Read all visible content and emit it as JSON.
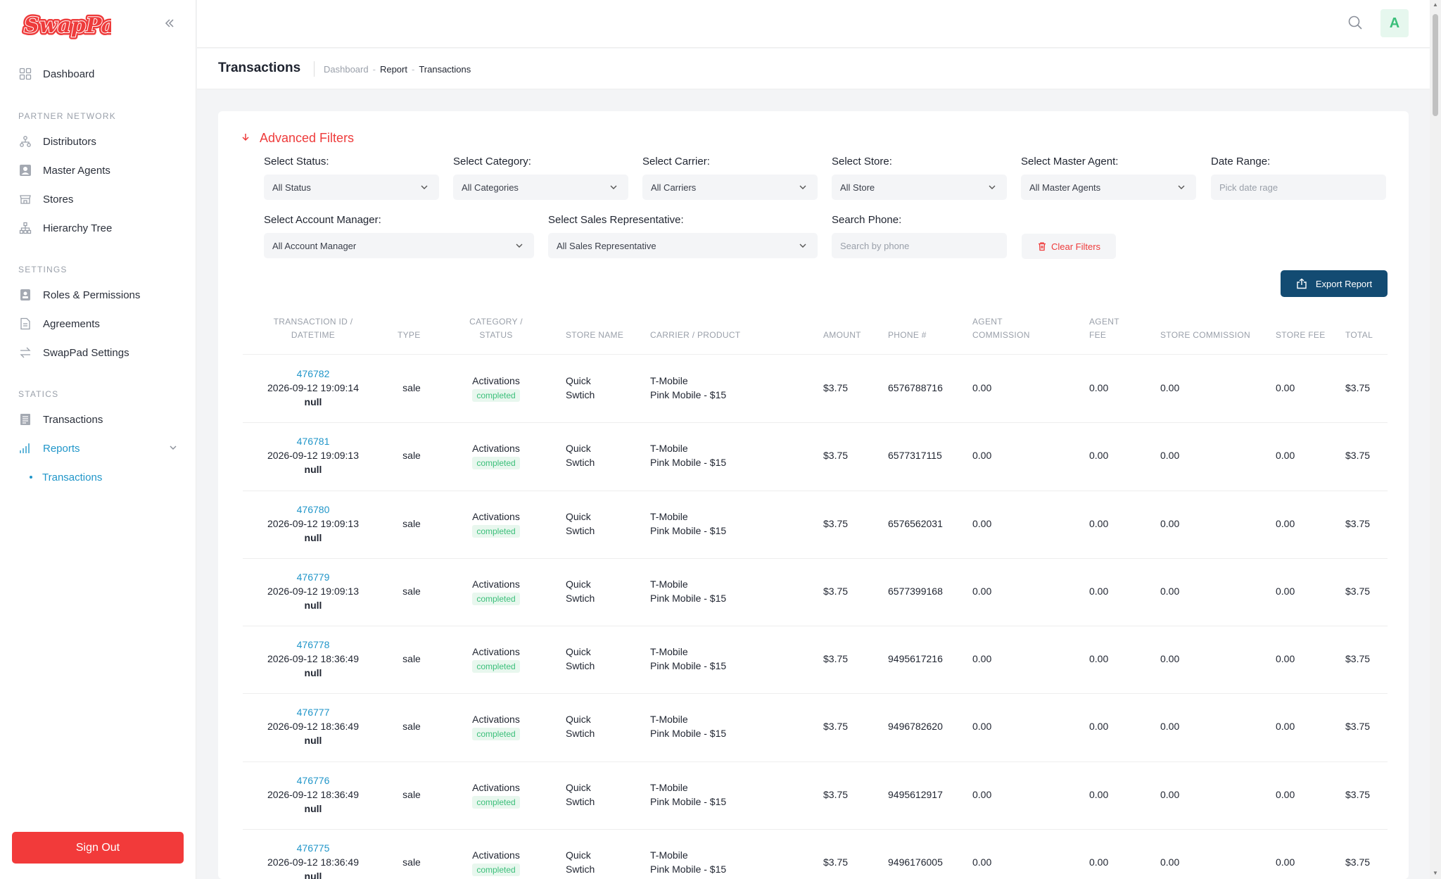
{
  "brand": {
    "logo_text": "SwapPad",
    "logo_color": "#ee3b3b"
  },
  "sidebar": {
    "dashboard": "Dashboard",
    "section_partner": "PARTNER NETWORK",
    "distributors": "Distributors",
    "master_agents": "Master Agents",
    "stores": "Stores",
    "hierarchy_tree": "Hierarchy Tree",
    "section_settings": "SETTINGS",
    "roles": "Roles & Permissions",
    "agreements": "Agreements",
    "swappad_settings": "SwapPad Settings",
    "section_statics": "STATICS",
    "transactions": "Transactions",
    "reports": "Reports",
    "reports_sub_transactions": "Transactions",
    "sign_out": "Sign Out"
  },
  "topbar": {
    "avatar_letter": "A",
    "search_icon": "search-icon"
  },
  "page": {
    "title": "Transactions",
    "breadcrumb": [
      "Dashboard",
      "Report",
      "Transactions"
    ]
  },
  "filters": {
    "title": "Advanced Filters",
    "status": {
      "label": "Select Status:",
      "value": "All Status"
    },
    "category": {
      "label": "Select Category:",
      "value": "All Categories"
    },
    "carrier": {
      "label": "Select Carrier:",
      "value": "All Carriers"
    },
    "store": {
      "label": "Select Store:",
      "value": "All Store"
    },
    "master_agent": {
      "label": "Select Master Agent:",
      "value": "All Master Agents"
    },
    "date_range": {
      "label": "Date Range:",
      "placeholder": "Pick date rage"
    },
    "account_manager": {
      "label": "Select Account Manager:",
      "value": "All Account Manager"
    },
    "sales_rep": {
      "label": "Select Sales Representative:",
      "value": "All Sales Representative"
    },
    "phone": {
      "label": "Search Phone:",
      "placeholder": "Search by phone"
    },
    "clear": "Clear Filters",
    "export": "Export Report"
  },
  "table": {
    "headers": {
      "tid_1": "TRANSACTION ID /",
      "tid_2": "DATETIME",
      "type": "TYPE",
      "cat_1": "CATEGORY /",
      "cat_2": "STATUS",
      "store": "STORE NAME",
      "carrier": "CARRIER / PRODUCT",
      "amount": "AMOUNT",
      "phone": "PHONE #",
      "agent_comm_1": "AGENT",
      "agent_comm_2": "COMMISSION",
      "agent_fee_1": "AGENT",
      "agent_fee_2": "FEE",
      "store_comm": "STORE COMMISSION",
      "store_fee": "STORE FEE",
      "total": "TOTAL"
    },
    "rows": [
      {
        "id": "476782",
        "datetime": "2026-09-12 19:09:14",
        "extra": "null",
        "type": "sale",
        "category": "Activations",
        "status": "completed",
        "store_1": "Quick",
        "store_2": "Swtich",
        "carrier": "T-Mobile",
        "product": "Pink Mobile - $15",
        "amount": "$3.75",
        "phone": "6576788716",
        "agent_commission": "0.00",
        "agent_fee": "0.00",
        "store_commission": "0.00",
        "store_fee": "0.00",
        "total": "$3.75"
      },
      {
        "id": "476781",
        "datetime": "2026-09-12 19:09:13",
        "extra": "null",
        "type": "sale",
        "category": "Activations",
        "status": "completed",
        "store_1": "Quick",
        "store_2": "Swtich",
        "carrier": "T-Mobile",
        "product": "Pink Mobile - $15",
        "amount": "$3.75",
        "phone": "6577317115",
        "agent_commission": "0.00",
        "agent_fee": "0.00",
        "store_commission": "0.00",
        "store_fee": "0.00",
        "total": "$3.75"
      },
      {
        "id": "476780",
        "datetime": "2026-09-12 19:09:13",
        "extra": "null",
        "type": "sale",
        "category": "Activations",
        "status": "completed",
        "store_1": "Quick",
        "store_2": "Swtich",
        "carrier": "T-Mobile",
        "product": "Pink Mobile - $15",
        "amount": "$3.75",
        "phone": "6576562031",
        "agent_commission": "0.00",
        "agent_fee": "0.00",
        "store_commission": "0.00",
        "store_fee": "0.00",
        "total": "$3.75"
      },
      {
        "id": "476779",
        "datetime": "2026-09-12 19:09:13",
        "extra": "null",
        "type": "sale",
        "category": "Activations",
        "status": "completed",
        "store_1": "Quick",
        "store_2": "Swtich",
        "carrier": "T-Mobile",
        "product": "Pink Mobile - $15",
        "amount": "$3.75",
        "phone": "6577399168",
        "agent_commission": "0.00",
        "agent_fee": "0.00",
        "store_commission": "0.00",
        "store_fee": "0.00",
        "total": "$3.75"
      },
      {
        "id": "476778",
        "datetime": "2026-09-12 18:36:49",
        "extra": "null",
        "type": "sale",
        "category": "Activations",
        "status": "completed",
        "store_1": "Quick",
        "store_2": "Swtich",
        "carrier": "T-Mobile",
        "product": "Pink Mobile - $15",
        "amount": "$3.75",
        "phone": "9495617216",
        "agent_commission": "0.00",
        "agent_fee": "0.00",
        "store_commission": "0.00",
        "store_fee": "0.00",
        "total": "$3.75"
      },
      {
        "id": "476777",
        "datetime": "2026-09-12 18:36:49",
        "extra": "null",
        "type": "sale",
        "category": "Activations",
        "status": "completed",
        "store_1": "Quick",
        "store_2": "Swtich",
        "carrier": "T-Mobile",
        "product": "Pink Mobile - $15",
        "amount": "$3.75",
        "phone": "9496782620",
        "agent_commission": "0.00",
        "agent_fee": "0.00",
        "store_commission": "0.00",
        "store_fee": "0.00",
        "total": "$3.75"
      },
      {
        "id": "476776",
        "datetime": "2026-09-12 18:36:49",
        "extra": "null",
        "type": "sale",
        "category": "Activations",
        "status": "completed",
        "store_1": "Quick",
        "store_2": "Swtich",
        "carrier": "T-Mobile",
        "product": "Pink Mobile - $15",
        "amount": "$3.75",
        "phone": "9495612917",
        "agent_commission": "0.00",
        "agent_fee": "0.00",
        "store_commission": "0.00",
        "store_fee": "0.00",
        "total": "$3.75"
      },
      {
        "id": "476775",
        "datetime": "2026-09-12 18:36:49",
        "extra": "null",
        "type": "sale",
        "category": "Activations",
        "status": "completed",
        "store_1": "Quick",
        "store_2": "Swtich",
        "carrier": "T-Mobile",
        "product": "Pink Mobile - $15",
        "amount": "$3.75",
        "phone": "9496176005",
        "agent_commission": "0.00",
        "agent_fee": "0.00",
        "store_commission": "0.00",
        "store_fee": "0.00",
        "total": "$3.75"
      }
    ]
  }
}
